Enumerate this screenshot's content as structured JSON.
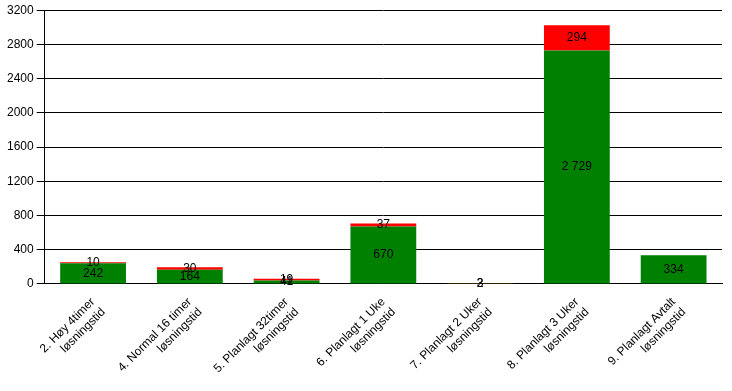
{
  "chart_data": {
    "type": "bar",
    "categories": [
      "2. Høy 4timer løsningstid",
      "4. Normal 16 timer løsningstid",
      "5. Planlagt 32timer løsningstid",
      "6. Planlagt 1 Uke løsningstid",
      "7. Planlagt 2 Uker løsningstid",
      "8. Planlagt 3 Uker løsningstid",
      "9. Planlagt Avtalt løsningstid"
    ],
    "series": [
      {
        "color": "#008000",
        "values": [
          242,
          164,
          41,
          670,
          3,
          2729,
          334
        ],
        "value_labels": [
          "242",
          "164",
          "41",
          "670",
          "3",
          "2 729",
          "334"
        ]
      },
      {
        "color": "#ff0000",
        "values": [
          10,
          30,
          19,
          37,
          2,
          294,
          null
        ],
        "value_labels": [
          "10",
          "30",
          "19",
          "37",
          "2",
          "294",
          null
        ]
      }
    ],
    "ylim": [
      0,
      3200
    ],
    "yticks": [
      0,
      400,
      800,
      1200,
      1600,
      2000,
      2400,
      2800,
      3200
    ],
    "grid": true,
    "stacked": true,
    "data_labels": true
  }
}
